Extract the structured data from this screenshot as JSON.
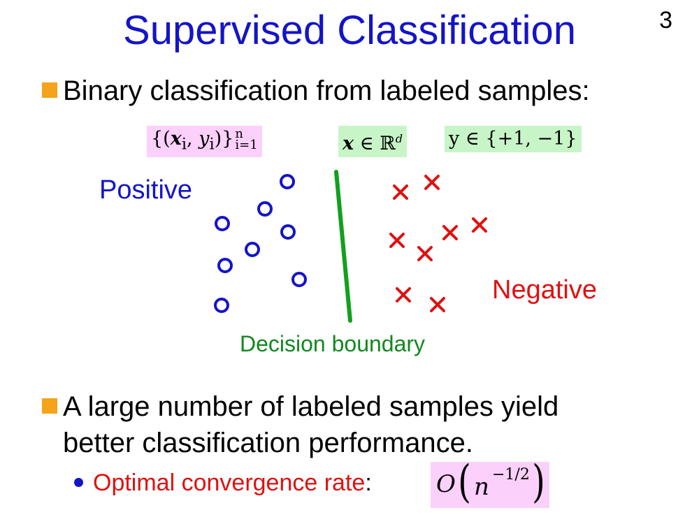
{
  "slide": {
    "title": "Supervised Classification",
    "page_number": "3"
  },
  "bullets": [
    {
      "text": "Binary classification from labeled samples:"
    },
    {
      "line1": "A large number of labeled samples yield",
      "line2": "better classification performance."
    }
  ],
  "formulas": {
    "dataset": {
      "open": "{(",
      "x": "x",
      "i1": "i",
      "comma": ", ",
      "y": "y",
      "i2": "i",
      "close": ")}",
      "sup": "n",
      "sub": "i=1"
    },
    "x_domain": {
      "x": "x",
      "in": " ∈ ",
      "R": "ℝ",
      "d": "d"
    },
    "y_domain": "y ∈ {+1, −1}",
    "rate": {
      "O": "O",
      "n": "n",
      "exp": "−1/2"
    }
  },
  "sub_bullet": {
    "label": "Optimal convergence rate",
    "colon": ":"
  },
  "figure": {
    "positive_label": "Positive",
    "negative_label": "Negative",
    "boundary_label": "Decision boundary",
    "colors": {
      "positive": "#1414c8",
      "negative": "#e01010",
      "boundary": "#11a01e"
    },
    "marker_shapes": {
      "positive": "circle",
      "negative": "cross"
    }
  }
}
